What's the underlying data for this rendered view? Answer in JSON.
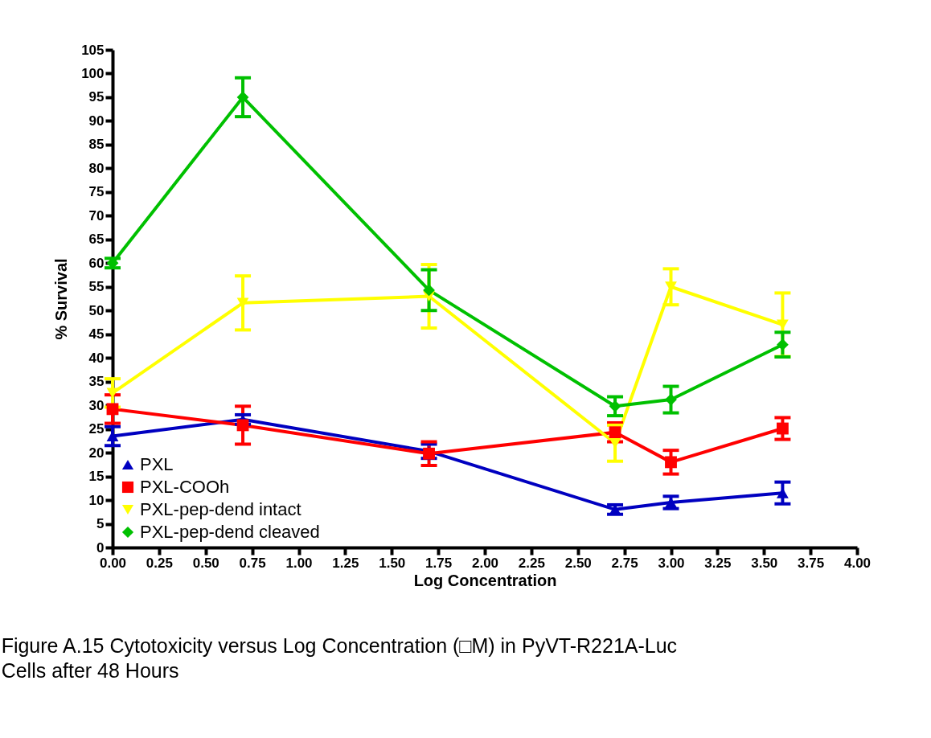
{
  "chart_data": {
    "type": "line",
    "xlabel": "Log Concentration",
    "ylabel": "%  Survival",
    "x": [
      0.0,
      0.7,
      1.7,
      2.7,
      3.0,
      3.6
    ],
    "series": [
      {
        "name": "PXL",
        "color": "#0000c0",
        "marker": "triangle",
        "values": [
          23.5,
          27,
          20.3,
          8,
          9.5,
          11.5
        ],
        "errors": [
          2,
          1,
          1.5,
          1,
          1.3,
          2.3
        ]
      },
      {
        "name": "PXL-COOh",
        "color": "#ff0000",
        "marker": "square",
        "values": [
          29.2,
          25.8,
          19.8,
          24.3,
          18,
          25.1
        ],
        "errors": [
          3,
          4,
          2.5,
          2,
          2.5,
          2.3
        ]
      },
      {
        "name": "PXL-pep-dend intact",
        "color": "#ffff00",
        "marker": "triangle-down",
        "values": [
          32.6,
          51.6,
          53,
          22,
          55,
          47
        ],
        "errors": [
          3,
          5.7,
          6.7,
          3.8,
          3.8,
          6.7
        ]
      },
      {
        "name": "PXL-pep-dend cleaved",
        "color": "#00c000",
        "marker": "diamond",
        "values": [
          60,
          95,
          54.3,
          29.8,
          31.2,
          42.8
        ],
        "errors": [
          1,
          4.1,
          4.3,
          2,
          2.8,
          2.6
        ]
      }
    ],
    "xlim": [
      0,
      4
    ],
    "xticks": [
      {
        "value": 0,
        "label": "0.00"
      },
      0.25,
      {
        "value": 0.5,
        "label": "0.50"
      },
      0.75,
      {
        "value": 1,
        "label": "1.00"
      },
      1.25,
      {
        "value": 1.5,
        "label": "1.50"
      },
      1.75,
      {
        "value": 2,
        "label": "2.00"
      },
      2.25,
      {
        "value": 2.5,
        "label": "2.50"
      },
      2.75,
      {
        "value": 3,
        "label": "3.00"
      },
      3.25,
      {
        "value": 3.5,
        "label": "3.50"
      },
      3.75,
      {
        "value": 4,
        "label": "4.00"
      }
    ],
    "ylim": [
      0,
      105
    ],
    "yticks": [
      0,
      5,
      10,
      15,
      20,
      25,
      30,
      35,
      40,
      45,
      50,
      55,
      60,
      65,
      70,
      75,
      80,
      85,
      90,
      95,
      100,
      105
    ],
    "grid": false,
    "legend": "bottom left",
    "line_style": "solid",
    "annotations": [
      "Figure A.15 Cytotoxicity versus Log Concentration (□M) in PyVT-R221A-Luc Cells after 48 Hours"
    ]
  }
}
